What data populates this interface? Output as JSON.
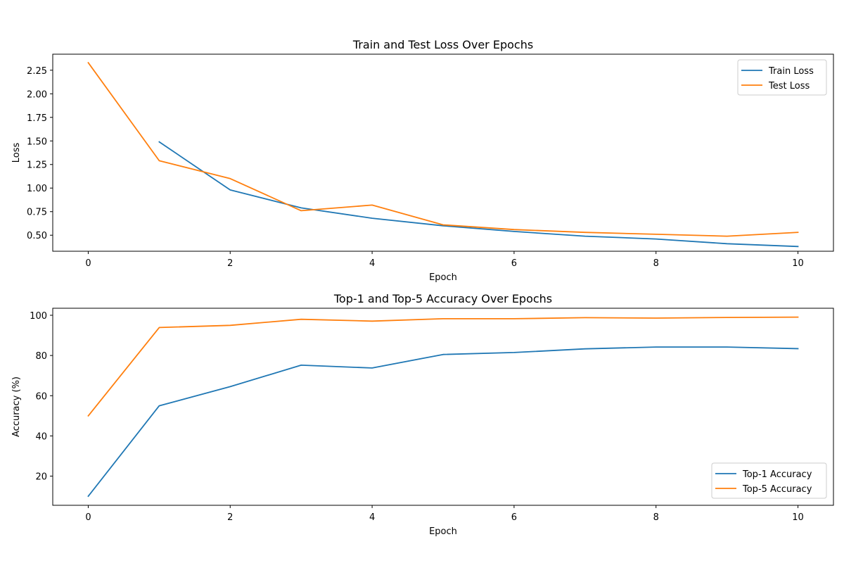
{
  "chart_data": [
    {
      "type": "line",
      "title": "Train and Test Loss Over Epochs",
      "xlabel": "Epoch",
      "ylabel": "Loss",
      "xlim": [
        -0.5,
        10.5
      ],
      "ylim": [
        0.33,
        2.42
      ],
      "xticks": [
        0,
        2,
        4,
        6,
        8,
        10
      ],
      "xtick_labels": [
        "0",
        "2",
        "4",
        "6",
        "8",
        "10"
      ],
      "yticks": [
        0.5,
        0.75,
        1.0,
        1.25,
        1.5,
        1.75,
        2.0,
        2.25
      ],
      "ytick_labels": [
        "0.50",
        "0.75",
        "1.00",
        "1.25",
        "1.50",
        "1.75",
        "2.00",
        "2.25"
      ],
      "grid": false,
      "legend": "top-right",
      "series": [
        {
          "name": "Train Loss",
          "color": "#1f77b4",
          "x": [
            1,
            2,
            3,
            4,
            5,
            6,
            7,
            8,
            9,
            10
          ],
          "values": [
            1.49,
            0.98,
            0.79,
            0.68,
            0.6,
            0.54,
            0.49,
            0.46,
            0.41,
            0.38
          ]
        },
        {
          "name": "Test Loss",
          "color": "#ff7f0e",
          "x": [
            0,
            1,
            2,
            3,
            4,
            5,
            6,
            7,
            8,
            9,
            10
          ],
          "values": [
            2.33,
            1.29,
            1.1,
            0.76,
            0.82,
            0.61,
            0.56,
            0.53,
            0.51,
            0.49,
            0.53
          ]
        }
      ]
    },
    {
      "type": "line",
      "title": "Top-1 and Top-5 Accuracy Over Epochs",
      "xlabel": "Epoch",
      "ylabel": "Accuracy (%)",
      "xlim": [
        -0.5,
        10.5
      ],
      "ylim": [
        5.5,
        103.5
      ],
      "xticks": [
        0,
        2,
        4,
        6,
        8,
        10
      ],
      "xtick_labels": [
        "0",
        "2",
        "4",
        "6",
        "8",
        "10"
      ],
      "yticks": [
        20,
        40,
        60,
        80,
        100
      ],
      "ytick_labels": [
        "20",
        "40",
        "60",
        "80",
        "100"
      ],
      "grid": false,
      "legend": "bottom-right",
      "series": [
        {
          "name": "Top-1 Accuracy",
          "color": "#1f77b4",
          "x": [
            0,
            1,
            2,
            3,
            4,
            5,
            6,
            7,
            8,
            9,
            10
          ],
          "values": [
            10,
            55,
            64.5,
            75.2,
            73.8,
            80.5,
            81.5,
            83.3,
            84.2,
            84.2,
            83.4
          ]
        },
        {
          "name": "Top-5 Accuracy",
          "color": "#ff7f0e",
          "x": [
            0,
            1,
            2,
            3,
            4,
            5,
            6,
            7,
            8,
            9,
            10
          ],
          "values": [
            50,
            93.9,
            95,
            98,
            97.1,
            98.3,
            98.3,
            98.8,
            98.6,
            98.9,
            99.1
          ]
        }
      ]
    }
  ]
}
